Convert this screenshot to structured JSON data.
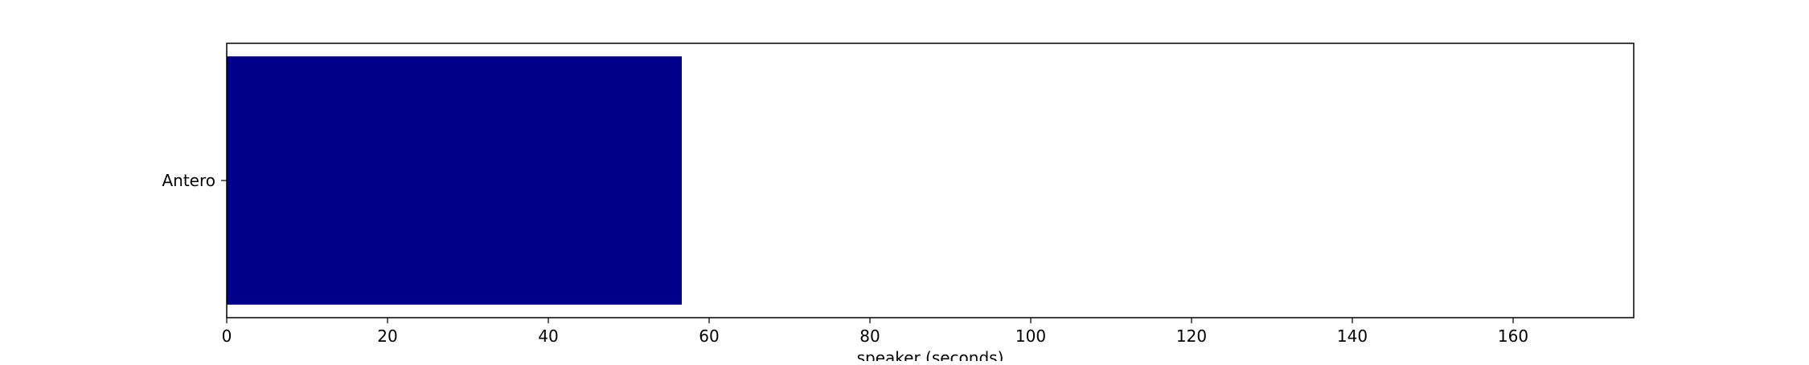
{
  "chart_data": {
    "type": "bar",
    "orientation": "horizontal",
    "categories": [
      "Antero"
    ],
    "values": [
      56.6
    ],
    "xlabel": "speaker (seconds)",
    "ylabel": "",
    "xlim": [
      0,
      175
    ],
    "xticks": [
      0,
      20,
      40,
      60,
      80,
      100,
      120,
      140,
      160
    ],
    "grid": false,
    "bar_color": "#00008b"
  }
}
